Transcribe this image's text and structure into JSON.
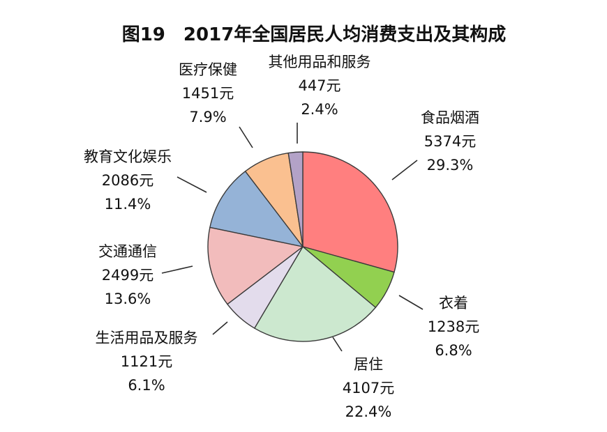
{
  "chart_data": {
    "type": "pie",
    "title": "图19　2017年全国居民人均消费支出及其构成",
    "unit": "元",
    "slices": [
      {
        "name": "食品烟酒",
        "value": 5374,
        "value_label": "5374元",
        "percent_label": "29.3%",
        "color": "#ff7f7f"
      },
      {
        "name": "衣着",
        "value": 1238,
        "value_label": "1238元",
        "percent_label": "6.8%",
        "color": "#92d050"
      },
      {
        "name": "居住",
        "value": 4107,
        "value_label": "4107元",
        "percent_label": "22.4%",
        "color": "#cce8cf"
      },
      {
        "name": "生活用品及服务",
        "value": 1121,
        "value_label": "1121元",
        "percent_label": "6.1%",
        "color": "#e3dcec"
      },
      {
        "name": "交通通信",
        "value": 2499,
        "value_label": "2499元",
        "percent_label": "13.6%",
        "color": "#f2bcbc"
      },
      {
        "name": "教育文化娱乐",
        "value": 2086,
        "value_label": "2086元",
        "percent_label": "11.4%",
        "color": "#95b3d7"
      },
      {
        "name": "医疗保健",
        "value": 1451,
        "value_label": "1451元",
        "percent_label": "7.9%",
        "color": "#fac090"
      },
      {
        "name": "其他用品和服务",
        "value": 447,
        "value_label": "447元",
        "percent_label": "2.4%",
        "color": "#b3a2c7"
      }
    ]
  }
}
